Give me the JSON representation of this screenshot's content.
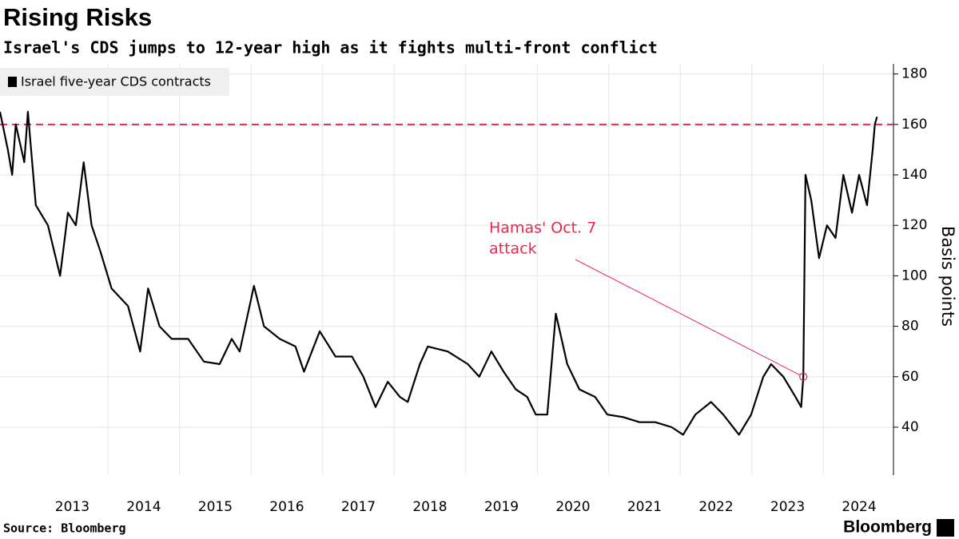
{
  "chart_data": {
    "type": "line",
    "title": "Rising Risks",
    "subtitle": "Israel's CDS jumps to 12-year high as it fights multi-front conflict",
    "y_label": "Basis points",
    "source": "Source: Bloomberg",
    "brand": "Bloomberg",
    "x": [
      2012.49,
      2012.6,
      2012.66,
      2012.71,
      2012.83,
      2012.88,
      2012.99,
      2013.16,
      2013.33,
      2013.44,
      2013.55,
      2013.66,
      2013.77,
      2013.89,
      2014.05,
      2014.28,
      2014.45,
      2014.56,
      2014.72,
      2014.89,
      2015.12,
      2015.34,
      2015.56,
      2015.73,
      2015.84,
      2016.04,
      2016.18,
      2016.4,
      2016.62,
      2016.74,
      2016.96,
      2017.18,
      2017.41,
      2017.57,
      2017.74,
      2017.91,
      2018.08,
      2018.19,
      2018.36,
      2018.47,
      2018.75,
      2019.03,
      2019.19,
      2019.36,
      2019.53,
      2019.7,
      2019.86,
      2019.98,
      2020.14,
      2020.26,
      2020.42,
      2020.59,
      2020.81,
      2020.98,
      2021.2,
      2021.43,
      2021.65,
      2021.88,
      2022.04,
      2022.21,
      2022.43,
      2022.6,
      2022.82,
      2022.99,
      2023.16,
      2023.27,
      2023.44,
      2023.61,
      2023.69,
      2023.72,
      2023.75,
      2023.83,
      2023.94,
      2024.05,
      2024.17,
      2024.28,
      2024.4,
      2024.5,
      2024.61,
      2024.69,
      2024.72,
      2024.75
    ],
    "series": [
      {
        "name": "Israel five-year CDS contracts",
        "color": "#000000",
        "values": [
          165,
          150,
          140,
          160,
          145,
          165,
          128,
          120,
          100,
          125,
          120,
          145,
          120,
          110,
          95,
          88,
          70,
          95,
          80,
          75,
          75,
          66,
          65,
          75,
          70,
          96,
          80,
          75,
          72,
          62,
          78,
          68,
          68,
          60,
          48,
          58,
          52,
          50,
          65,
          72,
          70,
          65,
          60,
          70,
          62,
          55,
          52,
          45,
          45,
          85,
          65,
          55,
          52,
          45,
          44,
          42,
          42,
          40,
          37,
          45,
          50,
          45,
          37,
          45,
          60,
          65,
          60,
          52,
          48,
          60,
          140,
          130,
          107,
          120,
          115,
          140,
          125,
          140,
          128,
          150,
          160,
          163
        ]
      }
    ],
    "xlim": [
      2012.49,
      2024.98
    ],
    "ylim": [
      21,
      184
    ],
    "xticks": [
      {
        "value": 2013.5,
        "label": "2013"
      },
      {
        "value": 2014.5,
        "label": "2014"
      },
      {
        "value": 2015.5,
        "label": "2015"
      },
      {
        "value": 2016.5,
        "label": "2016"
      },
      {
        "value": 2017.5,
        "label": "2017"
      },
      {
        "value": 2018.5,
        "label": "2018"
      },
      {
        "value": 2019.5,
        "label": "2019"
      },
      {
        "value": 2020.5,
        "label": "2020"
      },
      {
        "value": 2021.5,
        "label": "2021"
      },
      {
        "value": 2022.5,
        "label": "2022"
      },
      {
        "value": 2023.5,
        "label": "2023"
      },
      {
        "value": 2024.5,
        "label": "2024"
      }
    ],
    "xgrid": [
      2014,
      2015,
      2016,
      2017,
      2018,
      2019,
      2020,
      2021,
      2022,
      2023,
      2024
    ],
    "yticks": [
      40,
      60,
      80,
      100,
      120,
      140,
      160,
      180
    ],
    "grid": true,
    "legend": "top-left",
    "reference_line": {
      "value": 160,
      "color": "#e8284f"
    },
    "annotation": {
      "text": [
        "Hamas' Oct. 7",
        "attack"
      ],
      "x": 2023.72,
      "y": 60,
      "color": "#e8284f"
    }
  }
}
